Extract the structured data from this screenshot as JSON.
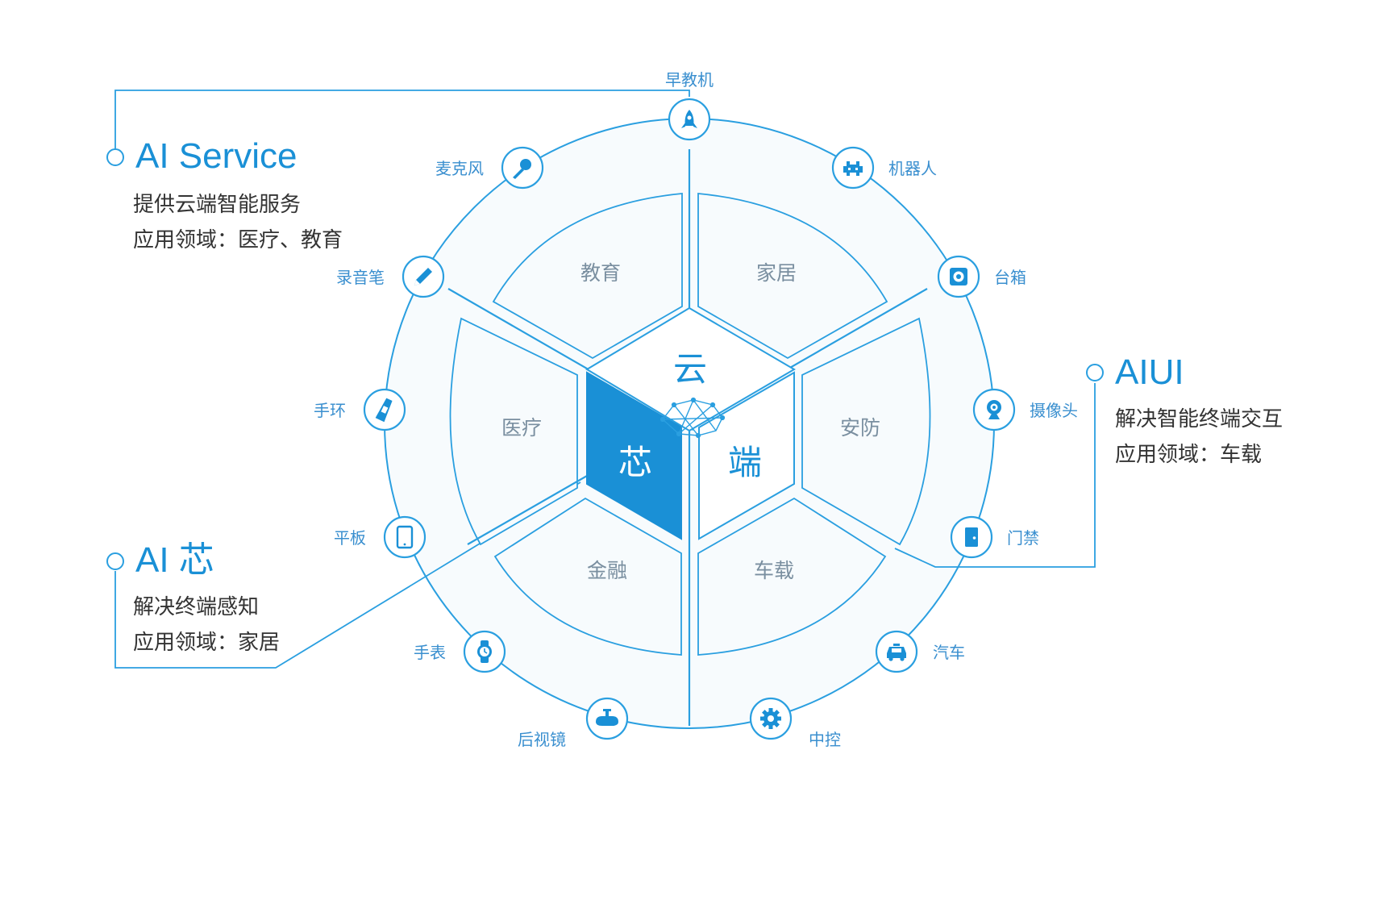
{
  "colors": {
    "accent": "#1a90d6",
    "line": "#2a9fe0",
    "segment_fill": "#f7fbfd",
    "segment_text": "#7a8fa0",
    "device_text": "#3a8fcf",
    "body_text": "#333333"
  },
  "hub": {
    "cloud": "云",
    "chip": "芯",
    "terminal": "端"
  },
  "segments": [
    {
      "id": "education",
      "label": "教育"
    },
    {
      "id": "home",
      "label": "家居"
    },
    {
      "id": "security",
      "label": "安防"
    },
    {
      "id": "vehicle",
      "label": "车载"
    },
    {
      "id": "finance",
      "label": "金融"
    },
    {
      "id": "medical",
      "label": "医疗"
    }
  ],
  "devices": [
    {
      "label": "早教机",
      "icon": "rocket-icon"
    },
    {
      "label": "机器人",
      "icon": "space-invader-icon"
    },
    {
      "label": "台箱",
      "icon": "speaker-icon"
    },
    {
      "label": "摄像头",
      "icon": "webcam-icon"
    },
    {
      "label": "门禁",
      "icon": "door-icon"
    },
    {
      "label": "汽车",
      "icon": "car-icon"
    },
    {
      "label": "中控",
      "icon": "gear-icon"
    },
    {
      "label": "后视镜",
      "icon": "rearview-mirror-icon"
    },
    {
      "label": "手表",
      "icon": "watch-icon"
    },
    {
      "label": "平板",
      "icon": "tablet-icon"
    },
    {
      "label": "手环",
      "icon": "wristband-icon"
    },
    {
      "label": "录音笔",
      "icon": "pen-icon"
    },
    {
      "label": "麦克风",
      "icon": "microphone-icon"
    }
  ],
  "callouts": {
    "ai_service": {
      "title": "AI Service",
      "line1": "提供云端智能服务",
      "line2": "应用领域：医疗、教育"
    },
    "aiui": {
      "title": "AIUI",
      "line1": "解决智能终端交互",
      "line2": "应用领域：车载"
    },
    "ai_chip": {
      "title": "AI 芯",
      "line1": "解决终端感知",
      "line2": "应用领域：家居"
    }
  }
}
